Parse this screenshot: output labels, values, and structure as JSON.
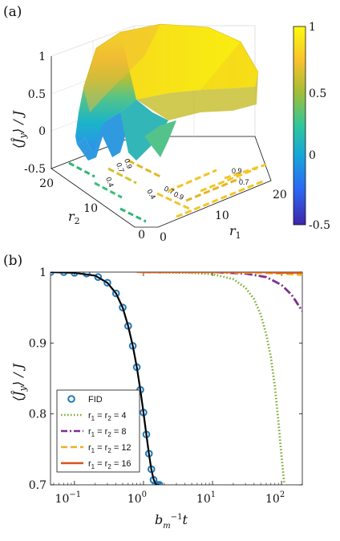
{
  "figure": {
    "panel_a_label": "(a)",
    "panel_b_label": "(b)"
  },
  "colorbar": {
    "ticks": [
      "1",
      "0.5",
      "0",
      "-0.5"
    ],
    "colors": [
      "#3e26a8",
      "#2c68f4",
      "#16a6d9",
      "#2fc79a",
      "#a4bd36",
      "#f9c22d",
      "#f9fb0e"
    ]
  },
  "chart_data": [
    {
      "type": "surface",
      "panel": "(a)",
      "zlabel": "⟨Ĵ_y⟩ / J",
      "xlabel": "r_1",
      "ylabel": "r_2",
      "ztick_labels": [
        "1",
        "0.5",
        "0",
        "-0.5"
      ],
      "x_tick_labels": [
        "0",
        "10",
        "20"
      ],
      "y_tick_labels": [
        "0",
        "10",
        "20"
      ],
      "zlim": [
        -0.5,
        1
      ],
      "xlim": [
        0,
        20
      ],
      "ylim": [
        0,
        20
      ],
      "colorbar_range": [
        -0.5,
        1
      ],
      "contour_labels": [
        "0.4",
        "0.7",
        "0.9",
        "0.4",
        "0.7",
        "0.9",
        "0.9",
        "0.7"
      ]
    },
    {
      "type": "line",
      "panel": "(b)",
      "xlabel": "b_m^{-1} t",
      "ylabel": "⟨Ĵ_y⟩ / J",
      "xscale": "log",
      "xlim": [
        0.045,
        200
      ],
      "ylim": [
        0.7,
        1.0
      ],
      "y_tick_labels": [
        "0.7",
        "0.8",
        "0.9",
        "1"
      ],
      "x_tick_labels": [
        "10^{-1}",
        "10^{0}",
        "10^{1}",
        "10^{2}"
      ],
      "legend_position": "lower-left",
      "series": [
        {
          "name": "FID",
          "style": "markers",
          "color": "#1f77b4",
          "x": [
            0.045,
            0.07,
            0.1,
            0.15,
            0.22,
            0.3,
            0.4,
            0.5,
            0.6,
            0.7,
            0.8,
            0.9,
            1.0,
            1.1,
            1.2,
            1.3,
            1.4,
            1.5,
            1.6,
            1.7
          ],
          "y": [
            1.0,
            1.0,
            0.999,
            0.998,
            0.993,
            0.985,
            0.97,
            0.95,
            0.924,
            0.896,
            0.866,
            0.834,
            0.802,
            0.771,
            0.744,
            0.722,
            0.707,
            0.7,
            0.7,
            0.7
          ]
        },
        {
          "name": "r1 = r2 = 4",
          "style": "dotted",
          "color": "#77ac30",
          "x": [
            1,
            5,
            10,
            20,
            30,
            40,
            50,
            60,
            70,
            80,
            90,
            100,
            110
          ],
          "y": [
            1.0,
            0.999,
            0.997,
            0.99,
            0.978,
            0.962,
            0.94,
            0.912,
            0.88,
            0.84,
            0.79,
            0.74,
            0.7
          ]
        },
        {
          "name": "r1 = r2 = 8",
          "style": "dashdot",
          "color": "#7e2f8e",
          "x": [
            1,
            10,
            30,
            60,
            100,
            140,
            200
          ],
          "y": [
            1.0,
            1.0,
            0.998,
            0.993,
            0.982,
            0.968,
            0.945
          ]
        },
        {
          "name": "r1 = r2 = 12",
          "style": "dashed",
          "color": "#edb120",
          "x": [
            0.9,
            10,
            50,
            100,
            200
          ],
          "y": [
            1.0,
            1.0,
            0.999,
            0.998,
            0.996
          ]
        },
        {
          "name": "r1 = r2 = 16",
          "style": "solid",
          "color": "#d95319",
          "x": [
            0.8,
            10,
            50,
            100,
            200
          ],
          "y": [
            1.0,
            1.0,
            1.0,
            0.999,
            0.999
          ]
        },
        {
          "name": "",
          "style": "solid",
          "color": "#000000",
          "x": [
            0.045,
            0.1,
            0.2,
            0.3,
            0.4,
            0.5,
            0.6,
            0.7,
            0.8,
            0.9,
            1.0,
            1.1,
            1.2,
            1.3,
            1.4,
            1.5,
            1.6,
            1.7
          ],
          "y": [
            1.0,
            0.999,
            0.995,
            0.985,
            0.97,
            0.95,
            0.924,
            0.896,
            0.866,
            0.834,
            0.802,
            0.771,
            0.744,
            0.722,
            0.708,
            0.701,
            0.7,
            0.7
          ]
        }
      ]
    }
  ],
  "legend_b": {
    "entries": [
      {
        "label": "FID"
      },
      {
        "label_main": "r",
        "label_sub": "1",
        "label_rest": " = r",
        "label_sub2": "2",
        "label_tail": " = 4"
      },
      {
        "label_main": "r",
        "label_sub": "1",
        "label_rest": " = r",
        "label_sub2": "2",
        "label_tail": " = 8"
      },
      {
        "label_main": "r",
        "label_sub": "1",
        "label_rest": " = r",
        "label_sub2": "2",
        "label_tail": " = 12"
      },
      {
        "label_main": "r",
        "label_sub": "1",
        "label_rest": " = r",
        "label_sub2": "2",
        "label_tail": " = 16"
      }
    ]
  }
}
